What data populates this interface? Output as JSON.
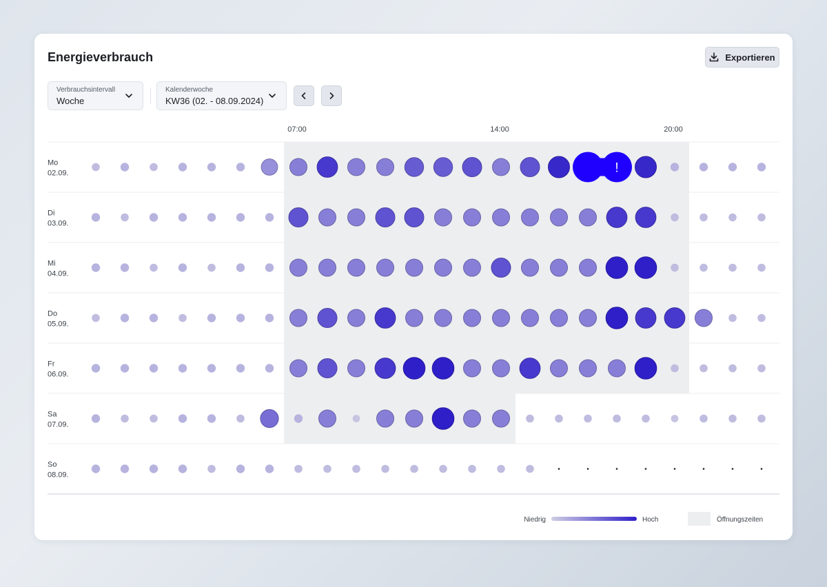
{
  "header": {
    "title": "Energieverbrauch",
    "export_label": "Exportieren"
  },
  "filters": {
    "interval": {
      "label": "Verbrauchsintervall",
      "value": "Woche"
    },
    "week": {
      "label": "Kalenderwoche",
      "value": "KW36 (02. - 08.09.2024)"
    }
  },
  "icons": {
    "export": "download-icon",
    "dropdown": "chevron-down-icon",
    "prev": "chevron-left-icon",
    "next": "chevron-right-icon",
    "alert": "!"
  },
  "colors": {
    "low": "#cfcde3",
    "high": "#2f1fc9",
    "alert": "#1f00ff",
    "opening_hours": "#edeef0"
  },
  "legend": {
    "low": "Niedrig",
    "high": "Hoch",
    "opening_hours": "Öffnungszeiten"
  },
  "chart_data": {
    "type": "heatmap",
    "x_tick_labels": [
      "07:00",
      "14:00",
      "20:00"
    ],
    "x_tick_hours": [
      7,
      14,
      20
    ],
    "hours": [
      0,
      1,
      2,
      3,
      4,
      5,
      6,
      7,
      8,
      9,
      10,
      11,
      12,
      13,
      14,
      15,
      16,
      17,
      18,
      19,
      20,
      21,
      22,
      23
    ],
    "value_scale": "0 = sehr niedrig, 1 = hoch, 1.3 = Spitze",
    "rows": [
      {
        "day": "Mo",
        "date": "02.09.",
        "open_hours": [
          7,
          20
        ],
        "values": [
          0.1,
          0.15,
          0.1,
          0.15,
          0.15,
          0.15,
          0.35,
          0.45,
          0.85,
          0.45,
          0.45,
          0.65,
          0.65,
          0.7,
          0.45,
          0.7,
          0.95,
          1.3,
          1.3,
          0.95,
          0.15,
          0.15,
          0.15,
          0.15
        ],
        "alert_hours": [
          17,
          18
        ]
      },
      {
        "day": "Di",
        "date": "03.09.",
        "open_hours": [
          7,
          20
        ],
        "values": [
          0.15,
          0.1,
          0.15,
          0.15,
          0.15,
          0.15,
          0.15,
          0.7,
          0.45,
          0.45,
          0.7,
          0.7,
          0.45,
          0.45,
          0.45,
          0.45,
          0.45,
          0.45,
          0.85,
          0.85,
          0.1,
          0.1,
          0.1,
          0.1
        ]
      },
      {
        "day": "Mi",
        "date": "04.09.",
        "open_hours": [
          7,
          20
        ],
        "values": [
          0.15,
          0.15,
          0.1,
          0.15,
          0.1,
          0.15,
          0.15,
          0.45,
          0.45,
          0.45,
          0.45,
          0.45,
          0.45,
          0.45,
          0.7,
          0.45,
          0.45,
          0.45,
          1.0,
          1.0,
          0.1,
          0.1,
          0.1,
          0.1
        ]
      },
      {
        "day": "Do",
        "date": "05.09.",
        "open_hours": [
          7,
          20
        ],
        "values": [
          0.1,
          0.15,
          0.15,
          0.1,
          0.15,
          0.15,
          0.15,
          0.45,
          0.7,
          0.45,
          0.85,
          0.45,
          0.45,
          0.45,
          0.45,
          0.45,
          0.45,
          0.45,
          1.0,
          0.85,
          0.85,
          0.45,
          0.1,
          0.1
        ]
      },
      {
        "day": "Fr",
        "date": "06.09.",
        "open_hours": [
          7,
          20
        ],
        "values": [
          0.15,
          0.15,
          0.15,
          0.15,
          0.15,
          0.15,
          0.15,
          0.45,
          0.7,
          0.45,
          0.85,
          1.0,
          1.0,
          0.45,
          0.45,
          0.85,
          0.45,
          0.45,
          0.45,
          1.0,
          0.1,
          0.1,
          0.1,
          0.1
        ]
      },
      {
        "day": "Sa",
        "date": "07.09.",
        "open_hours": [
          7,
          14
        ],
        "values": [
          0.15,
          0.1,
          0.1,
          0.15,
          0.15,
          0.1,
          0.55,
          0.15,
          0.45,
          0.05,
          0.45,
          0.45,
          1.0,
          0.45,
          0.45,
          0.1,
          0.1,
          0.1,
          0.1,
          0.1,
          0.05,
          0.1,
          0.1,
          0.1
        ]
      },
      {
        "day": "So",
        "date": "08.09.",
        "open_hours": null,
        "values": [
          0.15,
          0.15,
          0.15,
          0.15,
          0.1,
          0.15,
          0.15,
          0.1,
          0.1,
          0.1,
          0.1,
          0.1,
          0.1,
          0.1,
          0.1,
          0.1,
          0.0,
          0.0,
          0.0,
          0.0,
          0.0,
          0.0,
          0.0,
          0.0
        ]
      }
    ]
  }
}
